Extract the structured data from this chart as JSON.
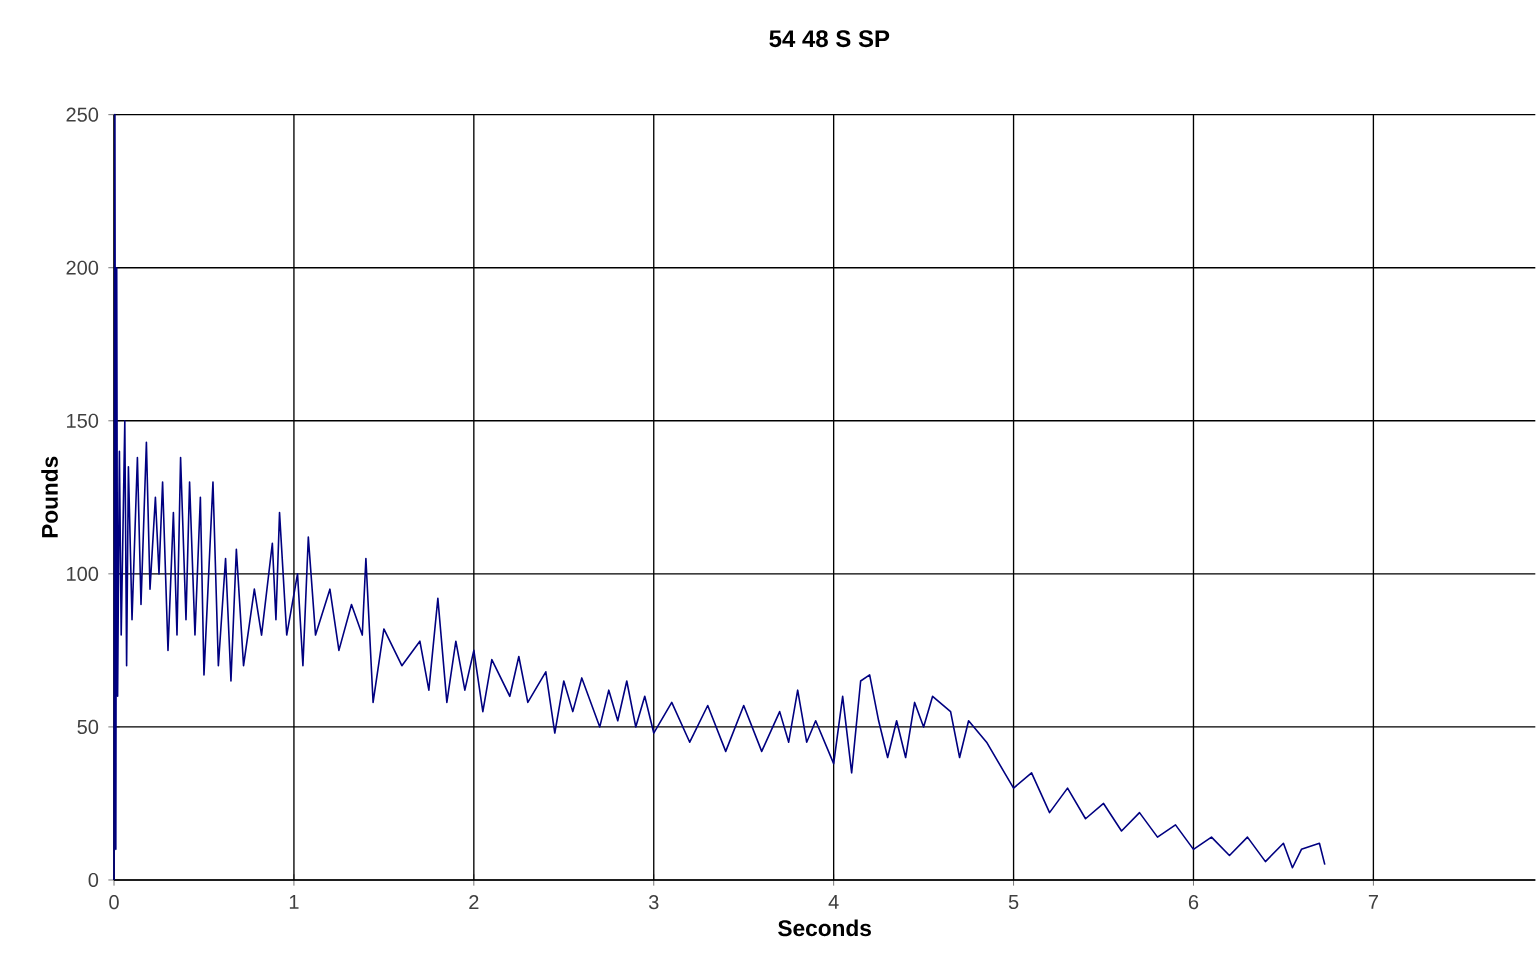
{
  "chart_data": {
    "type": "line",
    "title": "54 48 S SP",
    "xlabel": "Seconds",
    "ylabel": "Pounds",
    "xlim": [
      0,
      7.9
    ],
    "ylim": [
      0,
      250
    ],
    "xticks": [
      0,
      1,
      2,
      3,
      4,
      5,
      6,
      7
    ],
    "yticks": [
      0,
      50,
      100,
      150,
      200,
      250
    ],
    "grid": true,
    "series": [
      {
        "color": "#000080",
        "x": [
          0,
          0.005,
          0.01,
          0.015,
          0.02,
          0.03,
          0.04,
          0.06,
          0.07,
          0.08,
          0.1,
          0.13,
          0.15,
          0.18,
          0.2,
          0.23,
          0.25,
          0.27,
          0.3,
          0.33,
          0.35,
          0.37,
          0.4,
          0.42,
          0.45,
          0.48,
          0.5,
          0.55,
          0.58,
          0.62,
          0.65,
          0.68,
          0.72,
          0.78,
          0.82,
          0.88,
          0.9,
          0.92,
          0.96,
          1.02,
          1.05,
          1.08,
          1.12,
          1.2,
          1.25,
          1.32,
          1.38,
          1.4,
          1.44,
          1.5,
          1.6,
          1.7,
          1.75,
          1.8,
          1.85,
          1.9,
          1.95,
          2.0,
          2.05,
          2.1,
          2.2,
          2.25,
          2.3,
          2.4,
          2.45,
          2.5,
          2.55,
          2.6,
          2.7,
          2.75,
          2.8,
          2.85,
          2.9,
          2.95,
          3.0,
          3.1,
          3.2,
          3.3,
          3.4,
          3.5,
          3.6,
          3.7,
          3.75,
          3.8,
          3.85,
          3.9,
          4.0,
          4.05,
          4.1,
          4.15,
          4.2,
          4.25,
          4.3,
          4.35,
          4.4,
          4.45,
          4.5,
          4.55,
          4.65,
          4.7,
          4.75,
          4.85,
          4.95,
          5.0,
          5.1,
          5.2,
          5.3,
          5.4,
          5.5,
          5.6,
          5.7,
          5.8,
          5.9,
          6.0,
          6.1,
          6.2,
          6.3,
          6.4,
          6.5,
          6.55,
          6.6,
          6.7,
          6.73
        ],
        "values": [
          0,
          250,
          10,
          200,
          60,
          140,
          80,
          150,
          70,
          135,
          85,
          138,
          90,
          143,
          95,
          125,
          100,
          130,
          75,
          120,
          80,
          138,
          85,
          130,
          80,
          125,
          67,
          130,
          70,
          105,
          65,
          108,
          70,
          95,
          80,
          110,
          85,
          120,
          80,
          100,
          70,
          112,
          80,
          95,
          75,
          90,
          80,
          105,
          58,
          82,
          70,
          78,
          62,
          92,
          58,
          78,
          62,
          75,
          55,
          72,
          60,
          73,
          58,
          68,
          48,
          65,
          55,
          66,
          50,
          62,
          52,
          65,
          50,
          60,
          48,
          58,
          45,
          57,
          42,
          57,
          42,
          55,
          45,
          62,
          45,
          52,
          38,
          60,
          35,
          65,
          67,
          52,
          40,
          52,
          40,
          58,
          50,
          60,
          55,
          40,
          52,
          45,
          35,
          30,
          35,
          22,
          30,
          20,
          25,
          16,
          22,
          14,
          18,
          10,
          14,
          8,
          14,
          6,
          12,
          4,
          10,
          12,
          5
        ]
      }
    ]
  }
}
